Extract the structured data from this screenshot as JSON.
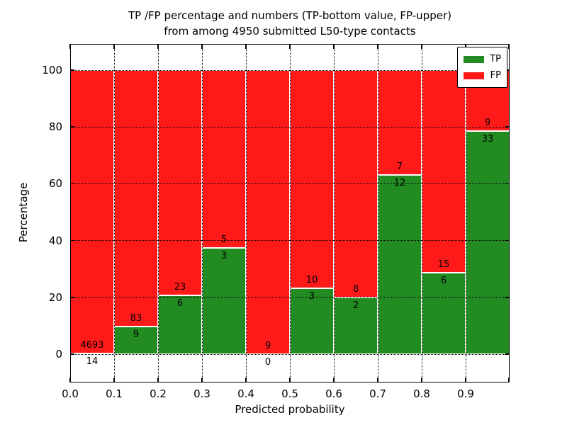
{
  "chart_data": {
    "type": "bar",
    "stacked": true,
    "normalized_to_100_percent": true,
    "title_line1": "TP /FP percentage and numbers (TP-bottom value, FP-upper)",
    "title_line2": "from among 4950 submitted L50-type contacts",
    "xlabel": "Predicted probability",
    "ylabel": "Percentage",
    "xlim": [
      0.0,
      1.0
    ],
    "ylim": [
      -10,
      109
    ],
    "grid_style": "dotted",
    "legend_position": "upper right",
    "series": [
      {
        "name": "TP",
        "color": "#228b22"
      },
      {
        "name": "FP",
        "color": "#ff1a1a"
      }
    ],
    "y_ticks": [
      {
        "value": 0,
        "label": "0"
      },
      {
        "value": 20,
        "label": "20"
      },
      {
        "value": 40,
        "label": "40"
      },
      {
        "value": 60,
        "label": "60"
      },
      {
        "value": 80,
        "label": "80"
      },
      {
        "value": 100,
        "label": "100"
      }
    ],
    "x_ticks": [
      {
        "value": 0.0,
        "label": "0.0"
      },
      {
        "value": 0.1,
        "label": "0.1"
      },
      {
        "value": 0.2,
        "label": "0.2"
      },
      {
        "value": 0.3,
        "label": "0.3"
      },
      {
        "value": 0.4,
        "label": "0.4"
      },
      {
        "value": 0.5,
        "label": "0.5"
      },
      {
        "value": 0.6,
        "label": "0.6"
      },
      {
        "value": 0.7,
        "label": "0.7"
      },
      {
        "value": 0.8,
        "label": "0.8"
      },
      {
        "value": 0.9,
        "label": "0.9"
      },
      {
        "value": 1.0,
        "label": ""
      }
    ],
    "bins": [
      {
        "x_start": 0.0,
        "x_end": 0.1,
        "tp_count": 14,
        "fp_count": 4693,
        "tp_percent": 0.3
      },
      {
        "x_start": 0.1,
        "x_end": 0.2,
        "tp_count": 9,
        "fp_count": 83,
        "tp_percent": 9.78
      },
      {
        "x_start": 0.2,
        "x_end": 0.3,
        "tp_count": 6,
        "fp_count": 23,
        "tp_percent": 20.69
      },
      {
        "x_start": 0.3,
        "x_end": 0.4,
        "tp_count": 3,
        "fp_count": 5,
        "tp_percent": 37.5
      },
      {
        "x_start": 0.4,
        "x_end": 0.5,
        "tp_count": 0,
        "fp_count": 9,
        "tp_percent": 0.0
      },
      {
        "x_start": 0.5,
        "x_end": 0.6,
        "tp_count": 3,
        "fp_count": 10,
        "tp_percent": 23.08
      },
      {
        "x_start": 0.6,
        "x_end": 0.7,
        "tp_count": 2,
        "fp_count": 8,
        "tp_percent": 20.0
      },
      {
        "x_start": 0.7,
        "x_end": 0.8,
        "tp_count": 12,
        "fp_count": 7,
        "tp_percent": 63.16
      },
      {
        "x_start": 0.8,
        "x_end": 0.9,
        "tp_count": 6,
        "fp_count": 15,
        "tp_percent": 28.57
      },
      {
        "x_start": 0.9,
        "x_end": 1.0,
        "tp_count": 33,
        "fp_count": 9,
        "tp_percent": 78.57
      }
    ]
  }
}
